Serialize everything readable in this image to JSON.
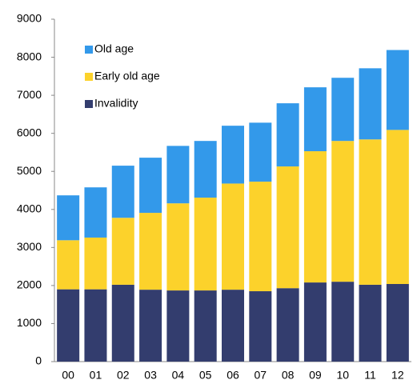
{
  "chart_data": {
    "type": "stacked-bar",
    "categories": [
      "00",
      "01",
      "02",
      "03",
      "04",
      "05",
      "06",
      "07",
      "08",
      "09",
      "10",
      "11",
      "12"
    ],
    "series": [
      {
        "name": "Invalidity",
        "color": "#333d6e",
        "values": [
          1900,
          1900,
          2020,
          1890,
          1870,
          1870,
          1890,
          1850,
          1930,
          2080,
          2100,
          2020,
          2040
        ]
      },
      {
        "name": "Early old age",
        "color": "#fcd22b",
        "values": [
          1290,
          1360,
          1760,
          2020,
          2290,
          2440,
          2790,
          2880,
          3200,
          3450,
          3700,
          3820,
          4050
        ]
      },
      {
        "name": "Old age",
        "color": "#3399ea",
        "values": [
          1180,
          1320,
          1370,
          1450,
          1510,
          1490,
          1520,
          1550,
          1660,
          1680,
          1660,
          1870,
          2100
        ]
      }
    ],
    "ylim": [
      0,
      9000
    ],
    "yticks": [
      0,
      1000,
      2000,
      3000,
      4000,
      5000,
      6000,
      7000,
      8000,
      9000
    ],
    "legend": "top-left"
  }
}
